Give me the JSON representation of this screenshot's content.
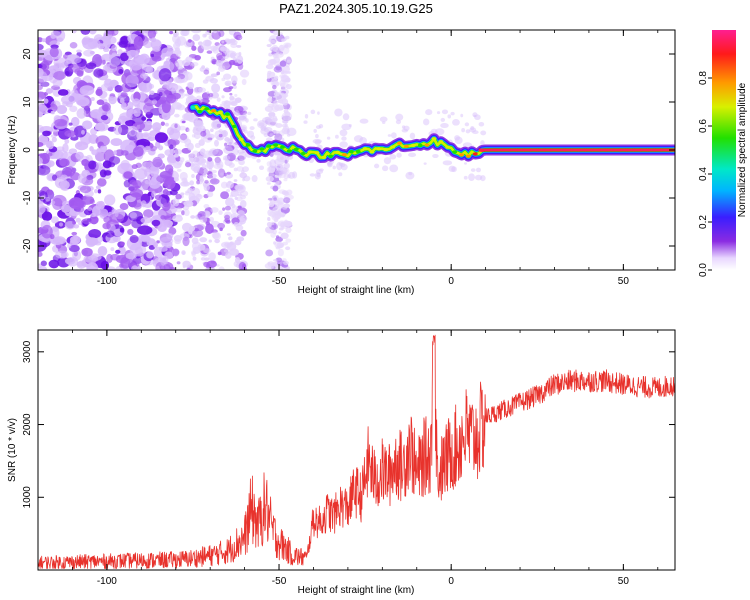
{
  "chart_data": [
    {
      "type": "heatmap",
      "title": "PAZ1.2024.305.10.19.G25",
      "xlabel": "Height of straight line (km)",
      "ylabel": "Frequency (Hz)",
      "xlim": [
        -120,
        65
      ],
      "ylim": [
        -25,
        25
      ],
      "xticks": [
        -100,
        -50,
        0,
        50
      ],
      "yticks": [
        20,
        10,
        0,
        -10,
        -20
      ],
      "colorscale": "rainbow (white → violet → blue → cyan → green → yellow → red → magenta)",
      "grid": false,
      "colorbar": {
        "label": "Normalized spectral amplitude",
        "range": [
          0,
          1
        ],
        "ticks": [
          "0.0",
          "0.2",
          "0.4",
          "0.6",
          "0.8"
        ]
      },
      "ridge": {
        "x": [
          -75,
          -70,
          -65,
          -60,
          -55,
          -50,
          -45,
          -40,
          -35,
          -30,
          -25,
          -20,
          -15,
          -10,
          -5,
          0,
          5,
          10,
          20,
          30,
          40,
          50,
          65
        ],
        "y": [
          9,
          8,
          7,
          1,
          0,
          1,
          0,
          -1,
          -1,
          -1,
          0,
          0,
          1,
          1,
          2,
          0,
          -1,
          0,
          0,
          0,
          0,
          0,
          0
        ],
        "amplitude": [
          0.35,
          0.45,
          0.45,
          0.35,
          0.3,
          0.3,
          0.3,
          0.5,
          0.5,
          0.5,
          0.5,
          0.5,
          0.5,
          0.5,
          0.5,
          0.45,
          0.6,
          0.9,
          0.9,
          0.9,
          0.9,
          0.9,
          0.9
        ]
      }
    },
    {
      "type": "line",
      "xlabel": "Height of straight line (km)",
      "ylabel": "SNR (10 * v/v)",
      "xlim": [
        -120,
        65
      ],
      "ylim": [
        0,
        3300
      ],
      "xticks": [
        -100,
        -50,
        0,
        50
      ],
      "yticks": [
        1000,
        2000,
        3000
      ],
      "grid": false,
      "series": [
        {
          "color": "#e8322c",
          "x": [
            -120,
            -110,
            -100,
            -90,
            -80,
            -75,
            -70,
            -65,
            -60,
            -58,
            -56,
            -54,
            -52,
            -50,
            -48,
            -46,
            -44,
            -42,
            -40,
            -38,
            -36,
            -34,
            -32,
            -30,
            -28,
            -26,
            -24,
            -22,
            -20,
            -18,
            -16,
            -14,
            -12,
            -10,
            -8,
            -6,
            -5,
            -4,
            -2,
            0,
            2,
            4,
            6,
            8,
            10,
            15,
            20,
            25,
            30,
            35,
            40,
            45,
            50,
            55,
            60,
            65
          ],
          "y": [
            100,
            110,
            120,
            130,
            140,
            160,
            200,
            260,
            450,
            850,
            600,
            900,
            550,
            380,
            300,
            200,
            180,
            160,
            700,
            650,
            800,
            750,
            900,
            850,
            1100,
            1000,
            1500,
            1200,
            1350,
            1300,
            1500,
            1400,
            1750,
            1300,
            1550,
            1600,
            3150,
            1300,
            1450,
            1650,
            1700,
            1900,
            1800,
            1850,
            2100,
            2200,
            2300,
            2400,
            2550,
            2600,
            2600,
            2600,
            2550,
            2520,
            2500,
            2550
          ]
        }
      ]
    }
  ]
}
